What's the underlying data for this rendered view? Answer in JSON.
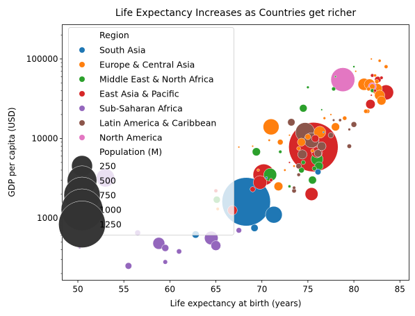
{
  "chart_data": {
    "type": "scatter",
    "title": "Life Expectancy Increases as Countries get richer",
    "xlabel": "Life expectancy at birth (years)",
    "ylabel": "GDP per capita (USD)",
    "xlim": [
      48.3,
      86.0
    ],
    "ylim": [
      165,
      270000
    ],
    "yscale": "log",
    "x_ticks": [
      50,
      55,
      60,
      65,
      70,
      75,
      80,
      85
    ],
    "y_ticks": [
      {
        "value": 1000,
        "label": "1000"
      },
      {
        "value": 10000,
        "label": "10000"
      },
      {
        "value": 100000,
        "label": "100000"
      }
    ],
    "grid": false,
    "legend": {
      "placement": "upper-left",
      "hue_title": "Region",
      "size_title": "Population (M)",
      "size_values": [
        250,
        500,
        750,
        1000,
        1250
      ],
      "size_labels": [
        "250",
        "500",
        "750",
        "1000",
        "1250"
      ]
    },
    "series": [
      {
        "name": "South Asia",
        "color": "#1f77b4",
        "points": [
          {
            "x": 68.3,
            "y": 1600,
            "pop": 1340
          },
          {
            "x": 71.3,
            "y": 1100,
            "pop": 160
          },
          {
            "x": 69.2,
            "y": 750,
            "pop": 30
          },
          {
            "x": 62.8,
            "y": 620,
            "pop": 30
          },
          {
            "x": 76.1,
            "y": 3800,
            "pop": 20
          },
          {
            "x": 70.5,
            "y": 3200,
            "pop": 3
          },
          {
            "x": 76.7,
            "y": 12000,
            "pop": 1
          }
        ]
      },
      {
        "name": "Europe & Central Asia",
        "color": "#ff7f0e",
        "points": [
          {
            "x": 71.0,
            "y": 14000,
            "pop": 145
          },
          {
            "x": 81.1,
            "y": 48000,
            "pop": 82
          },
          {
            "x": 82.5,
            "y": 42000,
            "pop": 67
          },
          {
            "x": 82.8,
            "y": 35000,
            "pop": 60
          },
          {
            "x": 81.7,
            "y": 48000,
            "pop": 66
          },
          {
            "x": 76.3,
            "y": 12000,
            "pop": 80
          },
          {
            "x": 83.0,
            "y": 30000,
            "pop": 46
          },
          {
            "x": 78.0,
            "y": 14000,
            "pop": 38
          },
          {
            "x": 74.3,
            "y": 9000,
            "pop": 37
          },
          {
            "x": 71.8,
            "y": 2500,
            "pop": 44
          },
          {
            "x": 72.0,
            "y": 9000,
            "pop": 18
          },
          {
            "x": 75.0,
            "y": 10500,
            "pop": 19
          },
          {
            "x": 82.0,
            "y": 45000,
            "pop": 17
          },
          {
            "x": 81.5,
            "y": 22000,
            "pop": 10
          },
          {
            "x": 75.5,
            "y": 7000,
            "pop": 7
          },
          {
            "x": 79.0,
            "y": 18000,
            "pop": 10
          },
          {
            "x": 81.3,
            "y": 22000,
            "pop": 10
          },
          {
            "x": 82.5,
            "y": 52000,
            "pop": 10
          },
          {
            "x": 81.6,
            "y": 42000,
            "pop": 9
          },
          {
            "x": 83.5,
            "y": 80000,
            "pop": 8
          },
          {
            "x": 82.3,
            "y": 62000,
            "pop": 5
          },
          {
            "x": 82.8,
            "y": 95000,
            "pop": 5
          },
          {
            "x": 81.9,
            "y": 100000,
            "pop": 1
          },
          {
            "x": 74.0,
            "y": 7500,
            "pop": 9
          },
          {
            "x": 76.8,
            "y": 18000,
            "pop": 4
          },
          {
            "x": 72.5,
            "y": 4000,
            "pop": 3
          },
          {
            "x": 73.5,
            "y": 4500,
            "pop": 3
          },
          {
            "x": 69.6,
            "y": 4000,
            "pop": 4
          },
          {
            "x": 70.8,
            "y": 9500,
            "pop": 3
          },
          {
            "x": 69.0,
            "y": 8000,
            "pop": 2
          },
          {
            "x": 77.5,
            "y": 20000,
            "pop": 1
          },
          {
            "x": 67.5,
            "y": 7800,
            "pop": 1
          },
          {
            "x": 73.0,
            "y": 11000,
            "pop": 1
          },
          {
            "x": 80.2,
            "y": 70000,
            "pop": 0.5
          },
          {
            "x": 65.2,
            "y": 1300,
            "pop": 6
          }
        ]
      },
      {
        "name": "Middle East & North Africa",
        "color": "#2ca02c",
        "points": [
          {
            "x": 70.9,
            "y": 3500,
            "pop": 95
          },
          {
            "x": 76.0,
            "y": 5500,
            "pop": 81
          },
          {
            "x": 74.5,
            "y": 24000,
            "pop": 33
          },
          {
            "x": 75.5,
            "y": 3000,
            "pop": 36
          },
          {
            "x": 69.4,
            "y": 6800,
            "pop": 38
          },
          {
            "x": 76.2,
            "y": 4500,
            "pop": 41
          },
          {
            "x": 75.7,
            "y": 4200,
            "pop": 11
          },
          {
            "x": 74.3,
            "y": 4000,
            "pop": 18
          },
          {
            "x": 65.1,
            "y": 1700,
            "pop": 28
          },
          {
            "x": 77.8,
            "y": 42000,
            "pop": 9
          },
          {
            "x": 82.0,
            "y": 40000,
            "pop": 8
          },
          {
            "x": 74.5,
            "y": 5000,
            "pop": 10
          },
          {
            "x": 72.0,
            "y": 6800,
            "pop": 6
          },
          {
            "x": 75.0,
            "y": 44000,
            "pop": 4
          },
          {
            "x": 78.0,
            "y": 60000,
            "pop": 2
          },
          {
            "x": 76.5,
            "y": 23000,
            "pop": 1.5
          },
          {
            "x": 80.0,
            "y": 80000,
            "pop": 2.6
          },
          {
            "x": 73.0,
            "y": 2500,
            "pop": 4.5
          }
        ]
      },
      {
        "name": "East Asia & Pacific",
        "color": "#d62728",
        "points": [
          {
            "x": 75.6,
            "y": 7800,
            "pop": 1390
          },
          {
            "x": 70.2,
            "y": 3500,
            "pop": 260
          },
          {
            "x": 75.4,
            "y": 2000,
            "pop": 95
          },
          {
            "x": 83.5,
            "y": 38000,
            "pop": 127
          },
          {
            "x": 69.8,
            "y": 2800,
            "pop": 105
          },
          {
            "x": 81.8,
            "y": 27000,
            "pop": 51
          },
          {
            "x": 82.6,
            "y": 55000,
            "pop": 24
          },
          {
            "x": 76.0,
            "y": 6700,
            "pop": 69
          },
          {
            "x": 66.8,
            "y": 1250,
            "pop": 53
          },
          {
            "x": 75.8,
            "y": 10000,
            "pop": 31
          },
          {
            "x": 82.3,
            "y": 40000,
            "pop": 5
          },
          {
            "x": 83.0,
            "y": 58000,
            "pop": 6
          },
          {
            "x": 69.0,
            "y": 2300,
            "pop": 16
          },
          {
            "x": 82.0,
            "y": 62000,
            "pop": 7
          },
          {
            "x": 65.0,
            "y": 2200,
            "pop": 8
          },
          {
            "x": 71.0,
            "y": 3000,
            "pop": 7
          },
          {
            "x": 73.0,
            "y": 5000,
            "pop": 0.9
          },
          {
            "x": 81.9,
            "y": 35000,
            "pop": 0.6
          }
        ]
      },
      {
        "name": "Sub-Saharan Africa",
        "color": "#9467bd",
        "points": [
          {
            "x": 64.5,
            "y": 560,
            "pop": 105
          },
          {
            "x": 58.8,
            "y": 480,
            "pop": 80
          },
          {
            "x": 53.0,
            "y": 3200,
            "pop": 190
          },
          {
            "x": 65.0,
            "y": 450,
            "pop": 55
          },
          {
            "x": 55.5,
            "y": 250,
            "pop": 25
          },
          {
            "x": 59.5,
            "y": 420,
            "pop": 28
          },
          {
            "x": 61.0,
            "y": 380,
            "pop": 15
          },
          {
            "x": 59.5,
            "y": 280,
            "pop": 12
          },
          {
            "x": 50.2,
            "y": 430,
            "pop": 5
          },
          {
            "x": 56.5,
            "y": 650,
            "pop": 19
          },
          {
            "x": 67.5,
            "y": 700,
            "pop": 17
          }
        ]
      },
      {
        "name": "Latin America & Caribbean",
        "color": "#8c564b",
        "points": [
          {
            "x": 74.7,
            "y": 12000,
            "pop": 210
          },
          {
            "x": 75.4,
            "y": 9500,
            "pop": 129
          },
          {
            "x": 74.4,
            "y": 6300,
            "pop": 49
          },
          {
            "x": 76.5,
            "y": 8000,
            "pop": 44
          },
          {
            "x": 76.1,
            "y": 6500,
            "pop": 32
          },
          {
            "x": 80.0,
            "y": 15000,
            "pop": 18
          },
          {
            "x": 77.5,
            "y": 11000,
            "pop": 17
          },
          {
            "x": 74.0,
            "y": 4500,
            "pop": 17
          },
          {
            "x": 79.5,
            "y": 8000,
            "pop": 11
          },
          {
            "x": 73.5,
            "y": 2200,
            "pop": 11
          },
          {
            "x": 74.0,
            "y": 3500,
            "pop": 7
          },
          {
            "x": 73.2,
            "y": 16000,
            "pop": 31
          },
          {
            "x": 78.5,
            "y": 17000,
            "pop": 5
          },
          {
            "x": 79.5,
            "y": 13000,
            "pop": 4
          },
          {
            "x": 77.8,
            "y": 17000,
            "pop": 3.5
          },
          {
            "x": 73.5,
            "y": 2400,
            "pop": 6
          }
        ]
      },
      {
        "name": "North America",
        "color": "#e377c2",
        "points": [
          {
            "x": 78.8,
            "y": 55000,
            "pop": 327
          },
          {
            "x": 82.0,
            "y": 45000,
            "pop": 37
          }
        ]
      }
    ]
  }
}
